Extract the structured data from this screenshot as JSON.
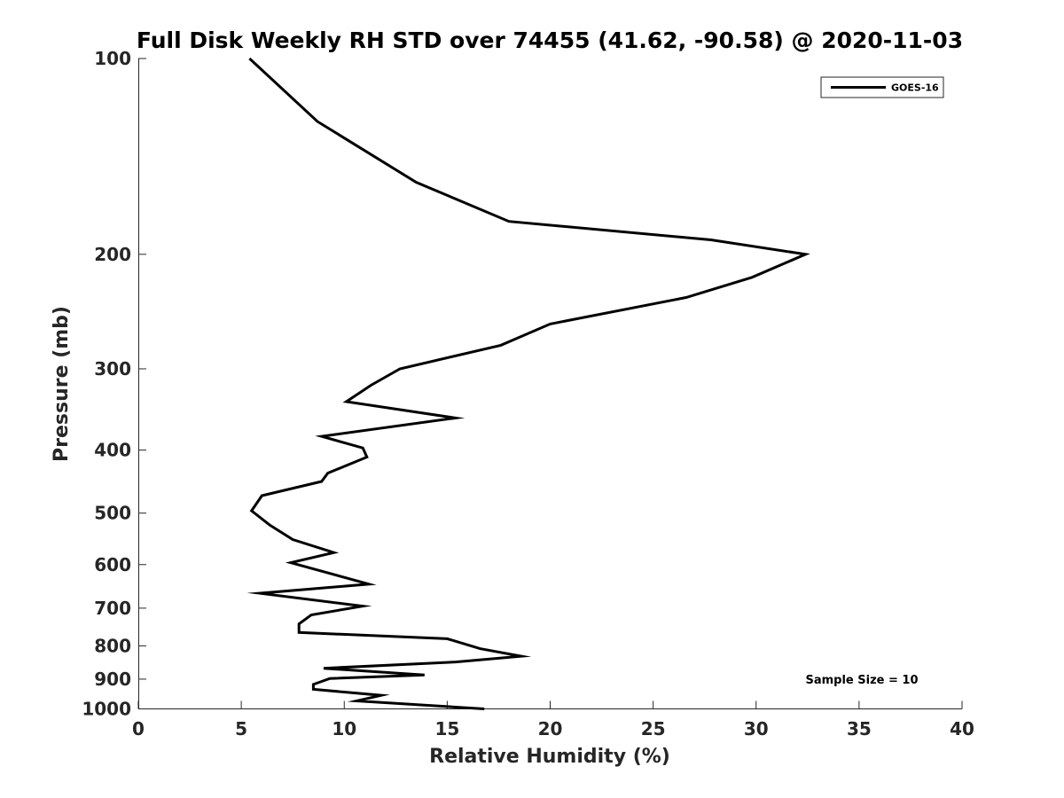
{
  "chart_data": {
    "type": "line",
    "title": "Full Disk Weekly RH STD over 74455 (41.62, -90.58) @ 2020-11-03",
    "xlabel": "Relative Humidity (%)",
    "ylabel": "Pressure (mb)",
    "xlim": [
      0,
      40
    ],
    "ylim": [
      1000,
      100
    ],
    "yscale": "log",
    "y_reversed": true,
    "grid": false,
    "legend_position": "top-right",
    "x_ticks": [
      "0",
      "5",
      "10",
      "15",
      "20",
      "25",
      "30",
      "35",
      "40"
    ],
    "y_ticks": [
      "100",
      "200",
      "300",
      "400",
      "500",
      "600",
      "700",
      "800",
      "900",
      "1000"
    ],
    "series": [
      {
        "name": "GOES-16",
        "color": "#000000",
        "points": [
          [
            5.4,
            100
          ],
          [
            8.7,
            125
          ],
          [
            13.5,
            155
          ],
          [
            18.0,
            178
          ],
          [
            27.8,
            190
          ],
          [
            32.4,
            200
          ],
          [
            29.8,
            217
          ],
          [
            26.6,
            233
          ],
          [
            20.0,
            256
          ],
          [
            17.6,
            276
          ],
          [
            12.7,
            300
          ],
          [
            11.3,
            318
          ],
          [
            10.1,
            337
          ],
          [
            15.4,
            357
          ],
          [
            8.9,
            381
          ],
          [
            10.9,
            397
          ],
          [
            11.1,
            410
          ],
          [
            9.2,
            434
          ],
          [
            8.9,
            447
          ],
          [
            6.0,
            470
          ],
          [
            5.5,
            496
          ],
          [
            6.4,
            522
          ],
          [
            7.5,
            549
          ],
          [
            9.5,
            575
          ],
          [
            7.4,
            596
          ],
          [
            9.3,
            619
          ],
          [
            11.2,
            643
          ],
          [
            5.9,
            664
          ],
          [
            10.9,
            695
          ],
          [
            8.4,
            717
          ],
          [
            7.8,
            740
          ],
          [
            7.8,
            763
          ],
          [
            15.0,
            780
          ],
          [
            16.6,
            808
          ],
          [
            18.6,
            830
          ],
          [
            15.4,
            847
          ],
          [
            9.0,
            866
          ],
          [
            13.9,
            887
          ],
          [
            9.3,
            898
          ],
          [
            8.5,
            917
          ],
          [
            8.5,
            933
          ],
          [
            11.8,
            953
          ],
          [
            10.6,
            972
          ],
          [
            16.8,
            1000
          ]
        ]
      }
    ],
    "annotations": [
      "Sample Size = 10"
    ]
  }
}
